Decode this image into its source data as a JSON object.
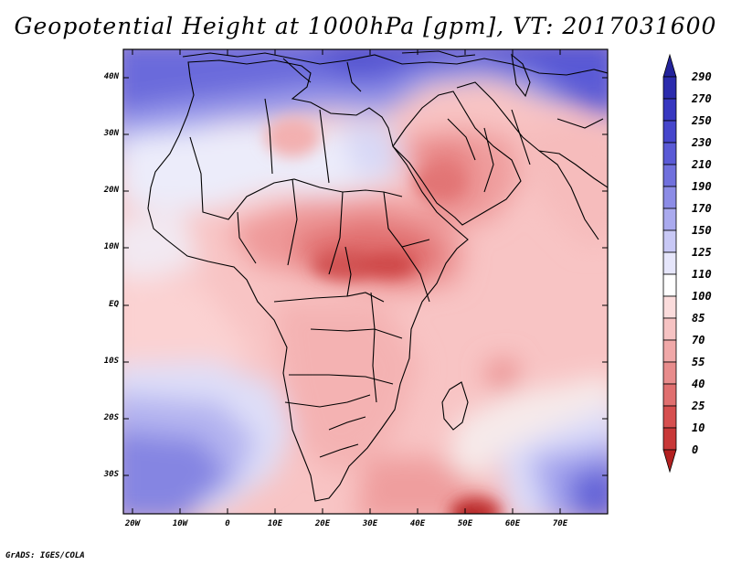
{
  "title": "Geopotential Height at 1000hPa [gpm], VT: 2017031600",
  "credit": "GrADS: IGES/COLA",
  "map": {
    "region": "Africa, Middle East and Arabian Sea",
    "variable": "Geopotential Height",
    "level": "1000hPa",
    "units": "gpm",
    "valid_time": "2017031600",
    "lat_labels": [
      "40N",
      "30N",
      "20N",
      "10N",
      "EQ",
      "10S",
      "20S",
      "30S"
    ],
    "lon_labels": [
      "20W",
      "10W",
      "0",
      "10E",
      "20E",
      "30E",
      "40E",
      "50E",
      "60E",
      "70E"
    ],
    "colorbar": {
      "levels": [
        "290",
        "270",
        "250",
        "230",
        "210",
        "190",
        "170",
        "150",
        "125",
        "110",
        "100",
        "85",
        "70",
        "55",
        "40",
        "25",
        "10",
        "0"
      ],
      "colors": [
        "#23239b",
        "#2b2bad",
        "#3737c0",
        "#4646cc",
        "#5a5ad6",
        "#7070dd",
        "#8c8ce6",
        "#aaaaee",
        "#c8c8f5",
        "#e6e6fb",
        "#ffffff",
        "#fbdcdc",
        "#f6c3c3",
        "#f0a8a8",
        "#e88c8c",
        "#e06f6f",
        "#d64f4f",
        "#c83838",
        "#b32020"
      ]
    }
  }
}
